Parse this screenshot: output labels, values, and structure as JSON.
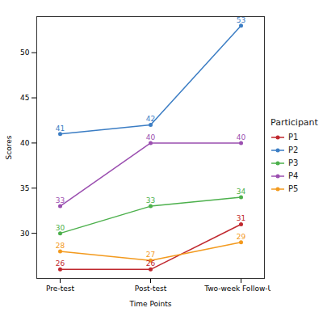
{
  "chart_data": {
    "type": "line",
    "x_label": "Time Points",
    "y_label": "Scores",
    "legend_title": "Participant",
    "categories": [
      "Pre-test",
      "Post-test",
      "Two-week Follow-Up"
    ],
    "series": [
      {
        "name": "P1",
        "color": "#c0282e",
        "values": [
          26,
          26,
          31
        ]
      },
      {
        "name": "P2",
        "color": "#3b7dc4",
        "values": [
          41,
          42,
          53
        ]
      },
      {
        "name": "P3",
        "color": "#4cb04c",
        "values": [
          30,
          33,
          34
        ]
      },
      {
        "name": "P4",
        "color": "#9b4fb0",
        "values": [
          33,
          40,
          40
        ]
      },
      {
        "name": "P5",
        "color": "#f39a1e",
        "values": [
          28,
          27,
          29
        ]
      }
    ],
    "ylim": [
      25,
      54
    ],
    "yticks": [
      30,
      35,
      40,
      45,
      50
    ],
    "grid": false,
    "legend": "right",
    "marker": "circle",
    "line_style": "solid",
    "data_labels": true
  }
}
